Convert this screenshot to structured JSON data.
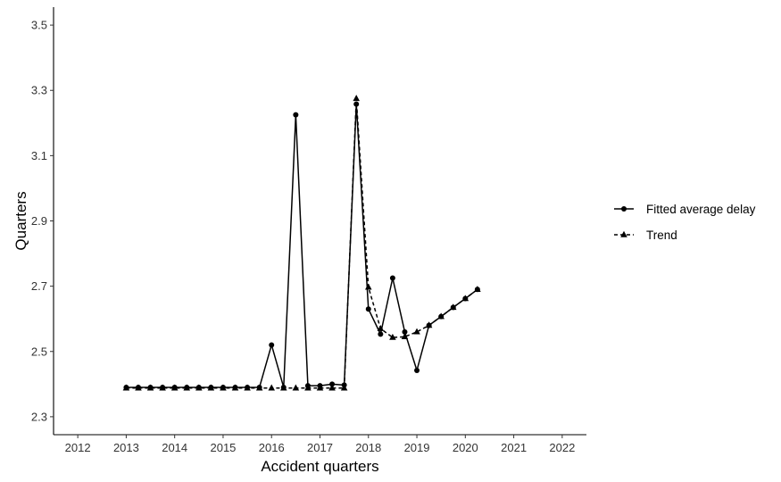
{
  "chart_data": {
    "type": "line",
    "xlabel": "Accident quarters",
    "ylabel": "Quarters",
    "xlim": [
      2011.5,
      2022.5
    ],
    "ylim": [
      2.245,
      3.555
    ],
    "x_ticks": [
      2012,
      2013,
      2014,
      2015,
      2016,
      2017,
      2018,
      2019,
      2020,
      2021,
      2022
    ],
    "y_ticks": [
      2.3,
      2.5,
      2.7,
      2.9,
      3.1,
      3.3,
      3.5
    ],
    "y_tick_labels": [
      "2.3",
      "2.5",
      "2.7",
      "2.9",
      "3.1",
      "3.3",
      "3.5"
    ],
    "grid": false,
    "legend_position": "right",
    "x": [
      2013.0,
      2013.25,
      2013.5,
      2013.75,
      2014.0,
      2014.25,
      2014.5,
      2014.75,
      2015.0,
      2015.25,
      2015.5,
      2015.75,
      2016.0,
      2016.25,
      2016.5,
      2016.75,
      2017.0,
      2017.25,
      2017.5,
      2017.75,
      2018.0,
      2018.25,
      2018.5,
      2018.75,
      2019.0,
      2019.25,
      2019.5,
      2019.75,
      2020.0,
      2020.25
    ],
    "series": [
      {
        "name": "Fitted average delay",
        "line_style": "solid",
        "marker": "circle",
        "values": [
          2.39,
          2.39,
          2.39,
          2.39,
          2.39,
          2.39,
          2.39,
          2.39,
          2.39,
          2.39,
          2.39,
          2.39,
          2.52,
          2.39,
          3.225,
          2.395,
          2.395,
          2.4,
          2.397,
          3.258,
          2.63,
          2.553,
          2.725,
          2.56,
          2.442,
          2.58,
          2.607,
          2.635,
          2.662,
          2.69
        ]
      },
      {
        "name": "Trend",
        "line_style": "dashed",
        "marker": "triangle",
        "values": [
          2.388,
          2.388,
          2.388,
          2.388,
          2.388,
          2.388,
          2.388,
          2.388,
          2.388,
          2.388,
          2.388,
          2.388,
          2.388,
          2.388,
          2.388,
          2.388,
          2.388,
          2.388,
          2.388,
          3.275,
          2.697,
          2.57,
          2.543,
          2.545,
          2.56,
          2.58,
          2.607,
          2.635,
          2.662,
          2.69
        ]
      }
    ]
  }
}
